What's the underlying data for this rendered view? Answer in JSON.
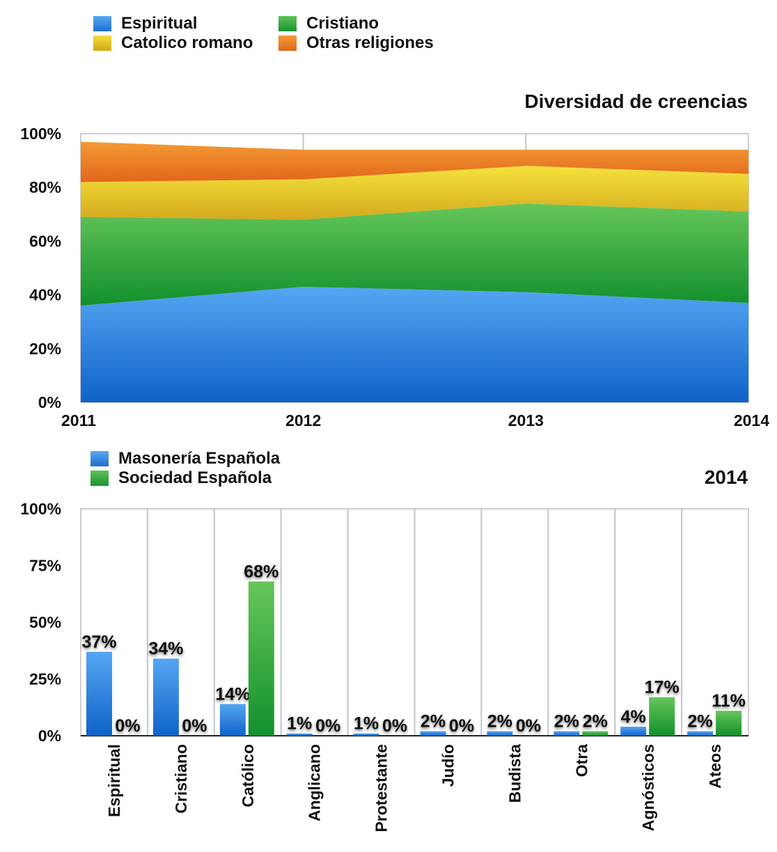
{
  "chart_data": [
    {
      "type": "area",
      "stacked": true,
      "title": "Diversidad de creencias",
      "x": [
        "2011",
        "2012",
        "2013",
        "2014"
      ],
      "ylim": [
        0,
        100
      ],
      "y_ticks": [
        "0%",
        "20%",
        "40%",
        "60%",
        "80%",
        "100%"
      ],
      "grid": "vertical",
      "legend_position": "top-left",
      "series": [
        {
          "name": "Espiritual",
          "values": [
            36,
            43,
            41,
            37
          ],
          "color": "#3d8fe0"
        },
        {
          "name": "Cristiano",
          "values": [
            33,
            25,
            33,
            34
          ],
          "color": "#2fa83a"
        },
        {
          "name": "Catolico romano",
          "values": [
            13,
            15,
            14,
            14
          ],
          "color": "#e6c52a"
        },
        {
          "name": "Otras religiones",
          "values": [
            15,
            11,
            6,
            9
          ],
          "color": "#e87820"
        }
      ]
    },
    {
      "type": "bar",
      "title": "2014",
      "categories": [
        "Espiritual",
        "Cristiano",
        "Católico",
        "Anglicano",
        "Protestante",
        "Judío",
        "Budista",
        "Otra",
        "Agnósticos",
        "Ateos"
      ],
      "ylim": [
        0,
        100
      ],
      "y_ticks": [
        "0%",
        "25%",
        "50%",
        "75%",
        "100%"
      ],
      "grid": "vertical",
      "legend_position": "top-left",
      "series": [
        {
          "name": "Masonería Española",
          "values": [
            37,
            34,
            14,
            1,
            1,
            2,
            2,
            2,
            4,
            2
          ],
          "labels": [
            "37%",
            "34%",
            "14%",
            "1%",
            "1%",
            "2%",
            "2%",
            "2%",
            "4%",
            "2%"
          ],
          "color": "#3d8fe0"
        },
        {
          "name": "Sociedad Española",
          "values": [
            0,
            0,
            68,
            0,
            0,
            0,
            0,
            2,
            17,
            11
          ],
          "labels": [
            "0%",
            "0%",
            "68%",
            "0%",
            "0%",
            "0%",
            "0%",
            "2%",
            "17%",
            "11%"
          ],
          "color": "#2fa83a"
        }
      ]
    }
  ]
}
